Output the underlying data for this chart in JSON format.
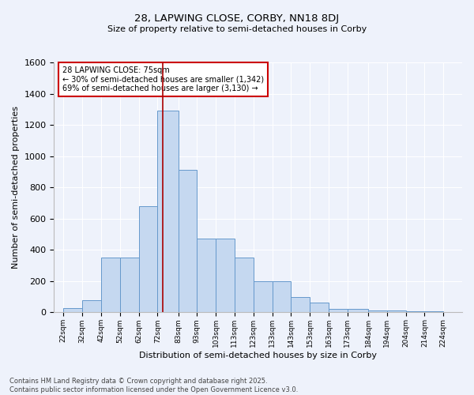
{
  "title_line1": "28, LAPWING CLOSE, CORBY, NN18 8DJ",
  "title_line2": "Size of property relative to semi-detached houses in Corby",
  "xlabel": "Distribution of semi-detached houses by size in Corby",
  "ylabel": "Number of semi-detached properties",
  "annotation_title": "28 LAPWING CLOSE: 75sqm",
  "annotation_line2": "← 30% of semi-detached houses are smaller (1,342)",
  "annotation_line3": "69% of semi-detached houses are larger (3,130) →",
  "footer_line1": "Contains HM Land Registry data © Crown copyright and database right 2025.",
  "footer_line2": "Contains public sector information licensed under the Open Government Licence v3.0.",
  "property_size": 75,
  "categories": [
    "22sqm",
    "32sqm",
    "42sqm",
    "52sqm",
    "62sqm",
    "72sqm",
    "83sqm",
    "93sqm",
    "103sqm",
    "113sqm",
    "123sqm",
    "133sqm",
    "143sqm",
    "153sqm",
    "163sqm",
    "173sqm",
    "184sqm",
    "194sqm",
    "204sqm",
    "214sqm",
    "224sqm"
  ],
  "bin_left_edges": [
    17,
    22,
    32,
    42,
    52,
    62,
    72,
    83,
    93,
    103,
    113,
    123,
    133,
    143,
    153,
    163,
    173,
    184,
    194,
    204,
    214,
    224,
    234
  ],
  "values": [
    0,
    25,
    80,
    350,
    350,
    680,
    1290,
    910,
    470,
    470,
    350,
    200,
    200,
    100,
    65,
    20,
    20,
    10,
    10,
    5,
    5,
    0
  ],
  "bar_color": "#c5d8f0",
  "bar_edge_color": "#6699cc",
  "marker_line_color": "#aa0000",
  "annotation_box_edge": "#cc0000",
  "background_color": "#eef2fb",
  "plot_bg_color": "#eef2fb",
  "grid_color": "#ffffff",
  "ylim": [
    0,
    1600
  ],
  "xlim": [
    17,
    234
  ],
  "yticks": [
    0,
    200,
    400,
    600,
    800,
    1000,
    1200,
    1400,
    1600
  ]
}
